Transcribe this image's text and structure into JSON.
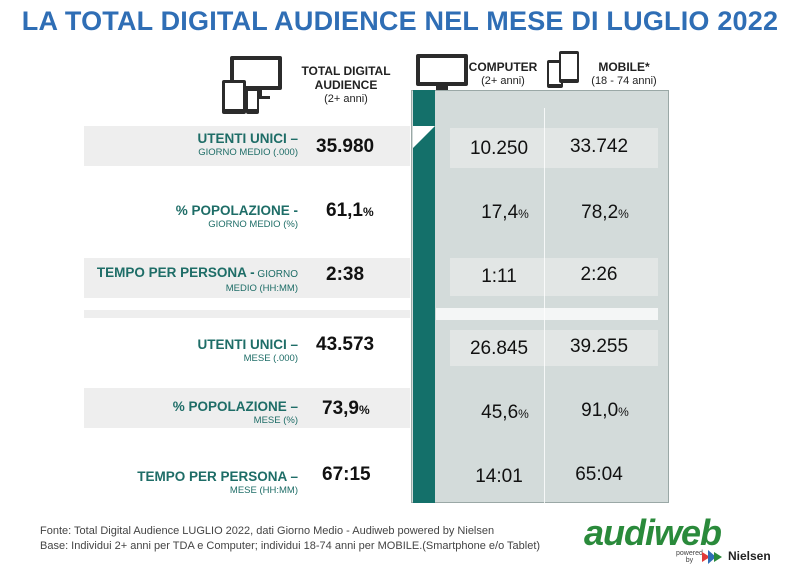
{
  "title": "LA TOTAL DIGITAL AUDIENCE NEL MESE DI LUGLIO 2022",
  "columns": {
    "total": {
      "title": "TOTAL DIGITAL AUDIENCE",
      "sub": "(2+ anni)",
      "icon": "multi-device-icon"
    },
    "computer": {
      "title": "COMPUTER",
      "sub": "(2+ anni)",
      "icon": "monitor-icon"
    },
    "mobile": {
      "title": "MOBILE*",
      "sub": "(18 - 74 anni)",
      "icon": "smartphone-tablet-icon"
    }
  },
  "rows": [
    {
      "label": "UTENTI UNICI –",
      "sublabel": "GIORNO MEDIO (.000)",
      "total": "35.980",
      "total_pct": "",
      "computer": "10.250",
      "computer_pct": "",
      "mobile": "33.742",
      "mobile_pct": ""
    },
    {
      "label": "% POPOLAZIONE -",
      "sublabel": "GIORNO MEDIO (%)",
      "total": "61,1",
      "total_pct": "%",
      "computer": "17,4",
      "computer_pct": "%",
      "mobile": "78,2",
      "mobile_pct": "%"
    },
    {
      "label": "TEMPO PER PERSONA -",
      "label_inline": " GIORNO",
      "sublabel": "MEDIO (HH:MM)",
      "total": "2:38",
      "total_pct": "",
      "computer": "1:11",
      "computer_pct": "",
      "mobile": "2:26",
      "mobile_pct": ""
    },
    {
      "label": "UTENTI UNICI –",
      "sublabel": "MESE (.000)",
      "total": "43.573",
      "total_pct": "",
      "computer": "26.845",
      "computer_pct": "",
      "mobile": "39.255",
      "mobile_pct": ""
    },
    {
      "label": "% POPOLAZIONE –",
      "sublabel": "MESE (%)",
      "total": "73,9",
      "total_pct": "%",
      "computer": "45,6",
      "computer_pct": "%",
      "mobile": "91,0",
      "mobile_pct": "%"
    },
    {
      "label": "TEMPO PER PERSONA –",
      "sublabel": "MESE (HH:MM)",
      "total": "67:15",
      "total_pct": "",
      "computer": "14:01",
      "computer_pct": "",
      "mobile": "65:04",
      "mobile_pct": ""
    }
  ],
  "footer": {
    "source": "Fonte: Total Digital Audience LUGLIO 2022, dati Giorno Medio - Audiweb powered by Nielsen",
    "base": "Base:  Individui 2+ anni per TDA e Computer; individui 18-74 anni per MOBILE.(Smartphone e/o Tablet)"
  },
  "logo": {
    "brand": "audiweb",
    "powered": "powered",
    "by": "by",
    "partner": "Nielsen"
  },
  "colors": {
    "title": "#2f6eb5",
    "teal": "#14706a",
    "label": "#1e6d67",
    "logo_green": "#2a8a3b"
  }
}
